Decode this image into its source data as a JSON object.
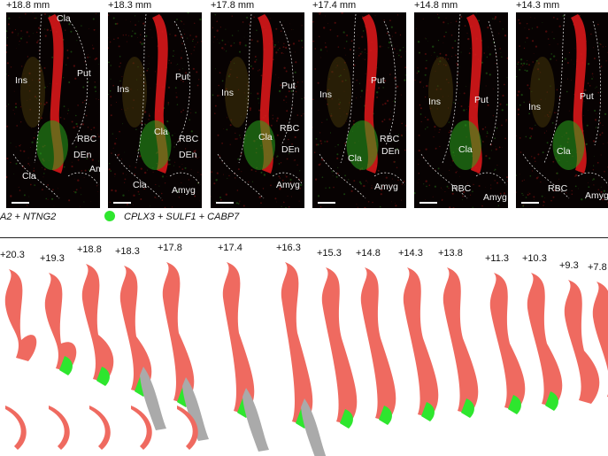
{
  "panels": [
    {
      "depth": "+18.8 mm",
      "labels": {
        "cla_top": "Cla",
        "ins": "Ins",
        "put": "Put",
        "rbc": "RBC",
        "den": "DEn",
        "cla_low": "Cla",
        "amyg": "Amyg"
      }
    },
    {
      "depth": "+18.3 mm",
      "labels": {
        "ins": "Ins",
        "put": "Put",
        "cla_mid": "Cla",
        "rbc": "RBC",
        "den": "DEn",
        "cla_low": "Cla",
        "amyg": "Amyg"
      }
    },
    {
      "depth": "+17.8 mm",
      "labels": {
        "ins": "Ins",
        "put": "Put",
        "cla_mid": "Cla",
        "rbc": "RBC",
        "den": "DEn",
        "amyg": "Amyg"
      }
    },
    {
      "depth": "+17.4 mm",
      "labels": {
        "ins": "Ins",
        "put": "Put",
        "rbc": "RBC",
        "den": "DEn",
        "cla_low": "Cla",
        "amyg": "Amyg"
      }
    },
    {
      "depth": "+14.8 mm",
      "labels": {
        "ins": "Ins",
        "put": "Put",
        "cla_low": "Cla",
        "rbc": "RBC",
        "amyg": "Amyg"
      }
    },
    {
      "depth": "+14.3 mm",
      "labels": {
        "ins": "Ins",
        "put": "Put",
        "cla_low": "Cla",
        "rbc": "RBC",
        "amyg": "Amyg"
      }
    }
  ],
  "legend": {
    "red_text": "A2 + NTNG2",
    "green_text": "CPLX3 + SULF1 + CABP7"
  },
  "colors": {
    "red": "#ee1c1c",
    "green": "#2ee62e",
    "salmon": "#ef6a60",
    "gray": "#aaaaaa",
    "bg": "#070202"
  },
  "sections": [
    {
      "label": "+20.3",
      "green": false,
      "gray": false
    },
    {
      "label": "+19.3",
      "green": true,
      "gray": false
    },
    {
      "label": "+18.8",
      "green": true,
      "gray": false
    },
    {
      "label": "+18.3",
      "green": true,
      "gray": true
    },
    {
      "label": "+17.8",
      "green": true,
      "gray": true
    },
    {
      "label": "+17.4",
      "green": true,
      "gray": true
    },
    {
      "label": "+16.3",
      "green": true,
      "gray": true
    },
    {
      "label": "+15.3",
      "green": true,
      "gray": false
    },
    {
      "label": "+14.8",
      "green": true,
      "gray": false
    },
    {
      "label": "+14.3",
      "green": true,
      "gray": false
    },
    {
      "label": "+13.8",
      "green": true,
      "gray": false
    },
    {
      "label": "+11.3",
      "green": true,
      "gray": false
    },
    {
      "label": "+10.3",
      "green": true,
      "gray": false
    },
    {
      "label": "+9.3",
      "green": false,
      "gray": false
    },
    {
      "label": "+7.8",
      "green": false,
      "gray": false
    }
  ]
}
